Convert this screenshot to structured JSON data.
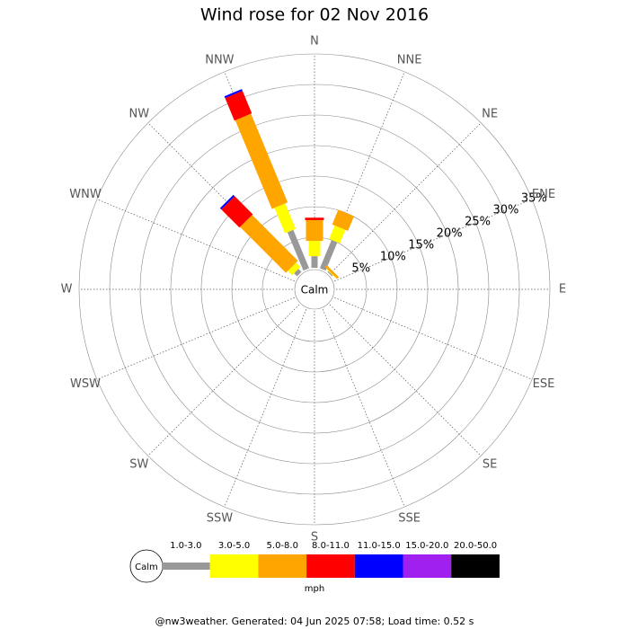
{
  "chart_data": {
    "type": "windrose",
    "title": "Wind rose for 02 Nov 2016",
    "categories": [
      "N",
      "NNE",
      "NE",
      "ENE",
      "E",
      "ESE",
      "SE",
      "SSE",
      "S",
      "SSW",
      "SW",
      "WSW",
      "W",
      "WNW",
      "NW",
      "NNW"
    ],
    "series": [
      {
        "name": "1.0-3.0",
        "color": "#999999",
        "values": [
          1.9,
          5.0,
          0.2,
          0,
          0,
          0,
          0,
          0,
          0,
          0,
          0,
          0,
          0,
          0,
          0.7,
          6.8
        ]
      },
      {
        "name": "3.0-5.0",
        "color": "#ffff00",
        "values": [
          2.5,
          2.4,
          0.1,
          0,
          0,
          0,
          0,
          0,
          0,
          0,
          0,
          0,
          0,
          0,
          1.0,
          4.5
        ]
      },
      {
        "name": "5.0-8.0",
        "color": "#ffa500",
        "values": [
          3.4,
          2.6,
          0.4,
          0,
          0,
          0,
          0,
          0,
          0,
          0,
          0,
          0,
          0,
          0,
          10.6,
          15.7
        ]
      },
      {
        "name": "8.0-11.0",
        "color": "#ff0000",
        "values": [
          0.4,
          0,
          0,
          0,
          0,
          0,
          0,
          0,
          0,
          0,
          0,
          0,
          0,
          0,
          4.2,
          4.0
        ]
      },
      {
        "name": "11.0-15.0",
        "color": "#0000ff",
        "values": [
          0,
          0,
          0,
          0,
          0,
          0,
          0,
          0,
          0,
          0,
          0,
          0,
          0,
          0,
          0.3,
          0.3
        ]
      },
      {
        "name": "15.0-20.0",
        "color": "#a020f0",
        "values": [
          0,
          0,
          0,
          0,
          0,
          0,
          0,
          0,
          0,
          0,
          0,
          0,
          0,
          0,
          0,
          0
        ]
      },
      {
        "name": "20.0-50.0",
        "color": "#000000",
        "values": [
          0,
          0,
          0,
          0,
          0,
          0,
          0,
          0,
          0,
          0,
          0,
          0,
          0,
          0,
          0,
          0
        ]
      }
    ],
    "rlim": [
      0,
      35
    ],
    "rticks": [
      {
        "value": 5,
        "label": "5%"
      },
      {
        "value": 10,
        "label": "10%"
      },
      {
        "value": 15,
        "label": "15%"
      },
      {
        "value": 20,
        "label": "20%"
      },
      {
        "value": 25,
        "label": "25%"
      },
      {
        "value": 30,
        "label": "30%"
      },
      {
        "value": 35,
        "label": "35%"
      }
    ],
    "calm_label": "Calm",
    "legend_unit": "mph",
    "footer": "@nw3weather. Generated: 04 Jun 2025 07:58; Load time: 0.52 s"
  }
}
